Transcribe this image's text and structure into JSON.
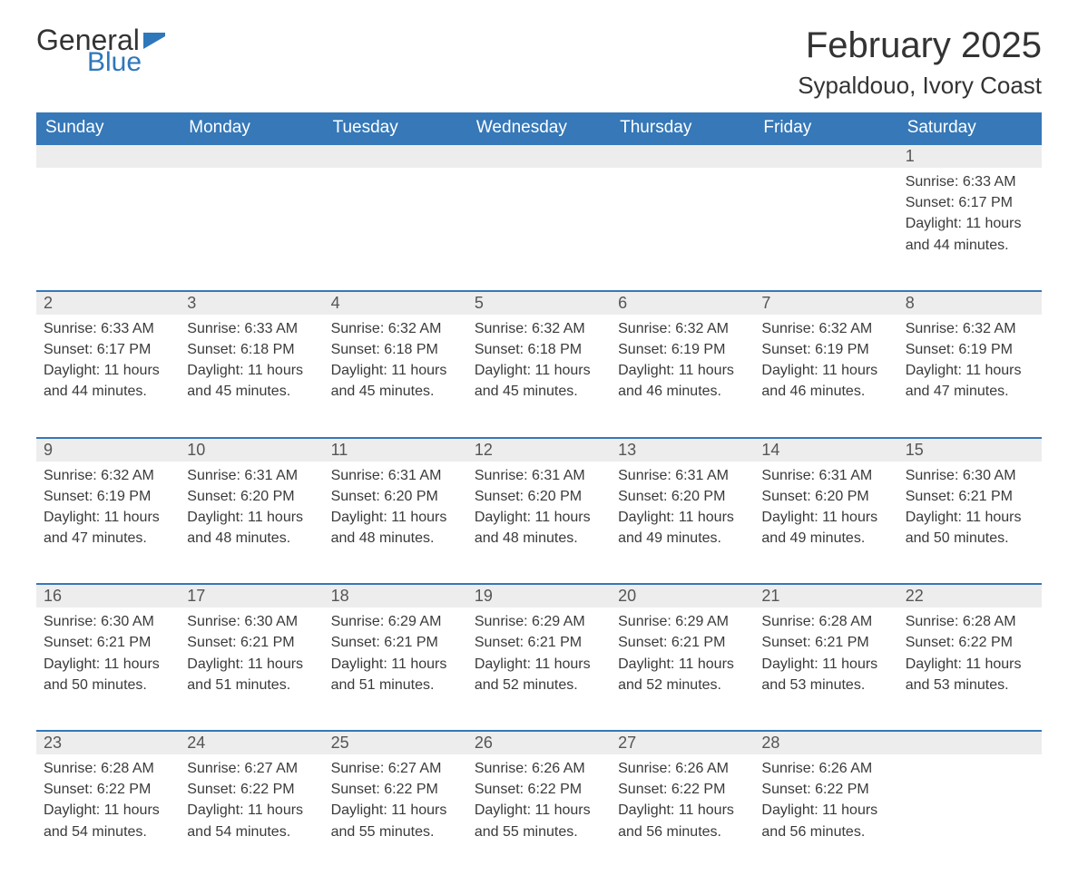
{
  "brand": {
    "word1": "General",
    "word2": "Blue",
    "flag_color": "#2f77bb"
  },
  "title": {
    "month_year": "February 2025",
    "location": "Sypaldouo, Ivory Coast"
  },
  "colors": {
    "header_bg": "#3678b8",
    "header_text": "#ffffff",
    "daynum_bg": "#ededed",
    "row_border": "#3678b8",
    "body_text": "#3a3a3a",
    "page_bg": "#ffffff"
  },
  "weekdays": [
    "Sunday",
    "Monday",
    "Tuesday",
    "Wednesday",
    "Thursday",
    "Friday",
    "Saturday"
  ],
  "label": {
    "sunrise": "Sunrise:",
    "sunset": "Sunset:",
    "daylight": "Daylight:"
  },
  "weeks": [
    [
      null,
      null,
      null,
      null,
      null,
      null,
      {
        "n": "1",
        "sr": "6:33 AM",
        "ss": "6:17 PM",
        "dl": "11 hours and 44 minutes."
      }
    ],
    [
      {
        "n": "2",
        "sr": "6:33 AM",
        "ss": "6:17 PM",
        "dl": "11 hours and 44 minutes."
      },
      {
        "n": "3",
        "sr": "6:33 AM",
        "ss": "6:18 PM",
        "dl": "11 hours and 45 minutes."
      },
      {
        "n": "4",
        "sr": "6:32 AM",
        "ss": "6:18 PM",
        "dl": "11 hours and 45 minutes."
      },
      {
        "n": "5",
        "sr": "6:32 AM",
        "ss": "6:18 PM",
        "dl": "11 hours and 45 minutes."
      },
      {
        "n": "6",
        "sr": "6:32 AM",
        "ss": "6:19 PM",
        "dl": "11 hours and 46 minutes."
      },
      {
        "n": "7",
        "sr": "6:32 AM",
        "ss": "6:19 PM",
        "dl": "11 hours and 46 minutes."
      },
      {
        "n": "8",
        "sr": "6:32 AM",
        "ss": "6:19 PM",
        "dl": "11 hours and 47 minutes."
      }
    ],
    [
      {
        "n": "9",
        "sr": "6:32 AM",
        "ss": "6:19 PM",
        "dl": "11 hours and 47 minutes."
      },
      {
        "n": "10",
        "sr": "6:31 AM",
        "ss": "6:20 PM",
        "dl": "11 hours and 48 minutes."
      },
      {
        "n": "11",
        "sr": "6:31 AM",
        "ss": "6:20 PM",
        "dl": "11 hours and 48 minutes."
      },
      {
        "n": "12",
        "sr": "6:31 AM",
        "ss": "6:20 PM",
        "dl": "11 hours and 48 minutes."
      },
      {
        "n": "13",
        "sr": "6:31 AM",
        "ss": "6:20 PM",
        "dl": "11 hours and 49 minutes."
      },
      {
        "n": "14",
        "sr": "6:31 AM",
        "ss": "6:20 PM",
        "dl": "11 hours and 49 minutes."
      },
      {
        "n": "15",
        "sr": "6:30 AM",
        "ss": "6:21 PM",
        "dl": "11 hours and 50 minutes."
      }
    ],
    [
      {
        "n": "16",
        "sr": "6:30 AM",
        "ss": "6:21 PM",
        "dl": "11 hours and 50 minutes."
      },
      {
        "n": "17",
        "sr": "6:30 AM",
        "ss": "6:21 PM",
        "dl": "11 hours and 51 minutes."
      },
      {
        "n": "18",
        "sr": "6:29 AM",
        "ss": "6:21 PM",
        "dl": "11 hours and 51 minutes."
      },
      {
        "n": "19",
        "sr": "6:29 AM",
        "ss": "6:21 PM",
        "dl": "11 hours and 52 minutes."
      },
      {
        "n": "20",
        "sr": "6:29 AM",
        "ss": "6:21 PM",
        "dl": "11 hours and 52 minutes."
      },
      {
        "n": "21",
        "sr": "6:28 AM",
        "ss": "6:21 PM",
        "dl": "11 hours and 53 minutes."
      },
      {
        "n": "22",
        "sr": "6:28 AM",
        "ss": "6:22 PM",
        "dl": "11 hours and 53 minutes."
      }
    ],
    [
      {
        "n": "23",
        "sr": "6:28 AM",
        "ss": "6:22 PM",
        "dl": "11 hours and 54 minutes."
      },
      {
        "n": "24",
        "sr": "6:27 AM",
        "ss": "6:22 PM",
        "dl": "11 hours and 54 minutes."
      },
      {
        "n": "25",
        "sr": "6:27 AM",
        "ss": "6:22 PM",
        "dl": "11 hours and 55 minutes."
      },
      {
        "n": "26",
        "sr": "6:26 AM",
        "ss": "6:22 PM",
        "dl": "11 hours and 55 minutes."
      },
      {
        "n": "27",
        "sr": "6:26 AM",
        "ss": "6:22 PM",
        "dl": "11 hours and 56 minutes."
      },
      {
        "n": "28",
        "sr": "6:26 AM",
        "ss": "6:22 PM",
        "dl": "11 hours and 56 minutes."
      },
      null
    ]
  ]
}
